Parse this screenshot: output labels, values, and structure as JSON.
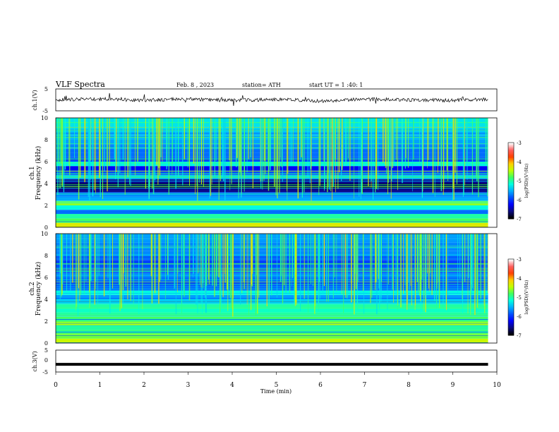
{
  "header": {
    "title": "VLF  Spectra",
    "date": "Feb. 8  , 2023",
    "station": "station= ATH",
    "start": "start  UT  =   1  :40: 1"
  },
  "colorbar": {
    "label": "log(PSD)(V²/Hz)",
    "ticks": [
      "-3",
      "-4",
      "-5",
      "-6",
      "-7"
    ]
  },
  "chart_data": [
    {
      "type": "line",
      "ylabel": "ch.1(V)",
      "ylim": [
        -5,
        5
      ],
      "yticks": [
        "5",
        "-5"
      ],
      "x": [
        0,
        1,
        2,
        3,
        4,
        5,
        6,
        7,
        8,
        9,
        9.8
      ],
      "y": [
        0,
        0.4,
        -0.2,
        0.5,
        -0.3,
        0.2,
        -0.5,
        0.3,
        0.0,
        -0.2,
        0.4
      ]
    },
    {
      "type": "heatmap",
      "ylabel": "ch.1\nFrequency  (kHz)",
      "yticks": [
        "10",
        "8",
        "6",
        "4",
        "2",
        "0"
      ],
      "ylim": [
        0,
        10
      ],
      "x_range_min": [
        0,
        9.8
      ],
      "band_freq_khz": [
        0.2,
        0.6,
        1.0,
        1.4,
        1.8,
        2.2,
        2.6,
        3.0,
        3.4,
        3.8,
        4.2,
        4.6,
        5.0,
        5.4,
        5.8,
        6.2,
        6.6,
        7.0,
        7.4,
        7.8,
        8.2,
        8.6,
        9.0,
        9.4,
        9.8
      ],
      "band_log_psd": [
        -4.3,
        -4.8,
        -5.0,
        -5.8,
        -5.2,
        -4.6,
        -5.6,
        -5.7,
        -6.6,
        -6.8,
        -6.6,
        -5.3,
        -6.0,
        -6.3,
        -5.2,
        -6.0,
        -5.8,
        -5.8,
        -5.7,
        -5.6,
        -5.5,
        -5.5,
        -5.4,
        -5.3,
        -5.3
      ]
    },
    {
      "type": "heatmap",
      "ylabel": "ch.2\nFrequency  (kHz)",
      "yticks": [
        "10",
        "8",
        "6",
        "4",
        "2",
        "0"
      ],
      "ylim": [
        0,
        10
      ],
      "x_range_min": [
        0,
        9.8
      ],
      "band_freq_khz": [
        0.2,
        0.6,
        1.0,
        1.4,
        1.8,
        2.2,
        2.6,
        3.0,
        3.4,
        3.8,
        4.2,
        4.6,
        5.0,
        5.4,
        5.8,
        6.2,
        6.6,
        7.0,
        7.4,
        7.8,
        8.2,
        8.6,
        9.0,
        9.4,
        9.8
      ],
      "band_log_psd": [
        -4.4,
        -4.7,
        -4.9,
        -5.0,
        -4.5,
        -4.8,
        -5.0,
        -5.1,
        -5.0,
        -5.4,
        -5.6,
        -5.2,
        -5.8,
        -6.0,
        -5.8,
        -5.7,
        -5.9,
        -5.9,
        -6.0,
        -5.8,
        -5.7,
        -5.7,
        -5.7,
        -5.6,
        -5.6
      ]
    },
    {
      "type": "line",
      "ylabel": "ch.3(V)",
      "ylim": [
        -5,
        5
      ],
      "yticks": [
        "5",
        "0",
        "-5"
      ],
      "x": [
        0,
        9.8
      ],
      "y": [
        -1.5,
        -1.5
      ]
    }
  ],
  "xaxis": {
    "label": "Time  (min)",
    "ticks": [
      "0",
      "1",
      "2",
      "3",
      "4",
      "5",
      "6",
      "7",
      "8",
      "9",
      "10"
    ],
    "range": [
      0,
      10
    ]
  },
  "colors": {
    "colormap": [
      "#000000",
      "#0a0a80",
      "#0000ff",
      "#0050ff",
      "#00b0ff",
      "#00ffe0",
      "#40ff60",
      "#c0ff00",
      "#ffd000",
      "#ff4000",
      "#ff6060",
      "#ffffff"
    ]
  }
}
